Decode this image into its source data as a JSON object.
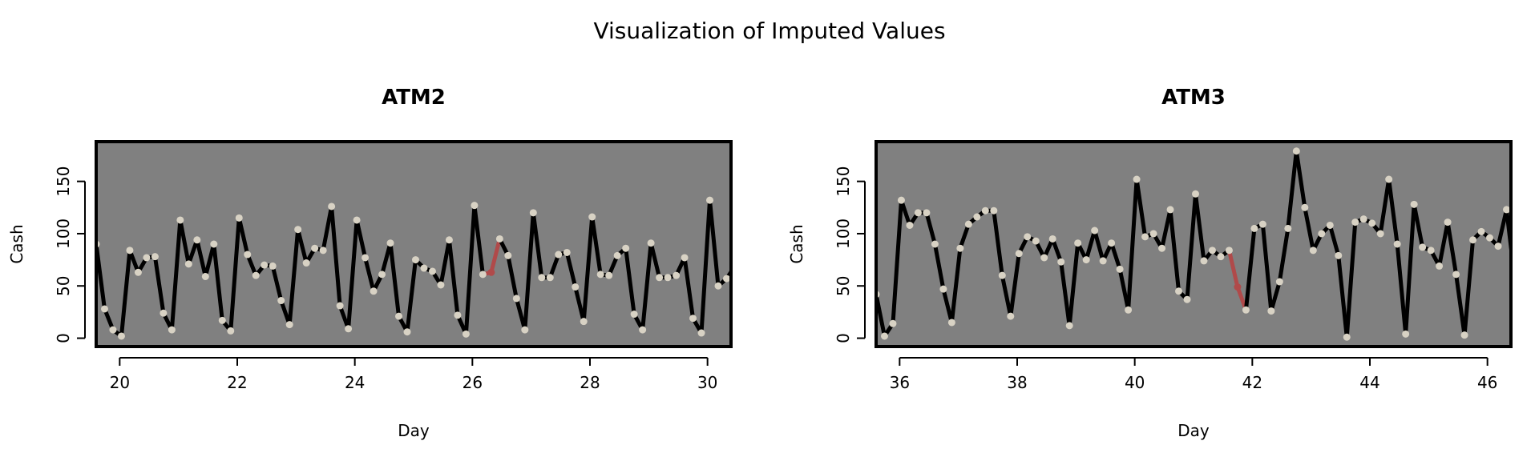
{
  "page": {
    "title": "Visualization of Imputed Values"
  },
  "colors": {
    "panel_bg": "#808080",
    "line": "#000000",
    "imputed_line": "#b04a4a",
    "point": "#d8d2c4"
  },
  "chart_data": [
    {
      "type": "line",
      "title": "ATM2",
      "xlabel": "Day",
      "ylabel": "Cash",
      "xlim": [
        19.6,
        30.4
      ],
      "ylim": [
        -8,
        188
      ],
      "xticks": [
        20,
        22,
        24,
        26,
        28,
        30
      ],
      "yticks": [
        0,
        50,
        100,
        150
      ],
      "x_start": 19.6,
      "x_step": 0.143,
      "values": [
        90,
        28,
        8,
        2,
        84,
        63,
        77,
        78,
        24,
        8,
        113,
        71,
        94,
        59,
        90,
        17,
        7,
        115,
        80,
        60,
        70,
        69,
        36,
        13,
        104,
        72,
        86,
        84,
        126,
        31,
        9,
        113,
        77,
        45,
        61,
        91,
        21,
        6,
        75,
        67,
        64,
        51,
        94,
        22,
        4,
        127,
        61,
        63,
        95,
        79,
        38,
        8,
        120,
        58,
        58,
        80,
        82,
        49,
        16,
        116,
        61,
        60,
        79,
        86,
        23,
        8,
        91,
        58,
        58,
        60,
        77,
        19,
        5,
        132,
        50,
        57,
        69
      ],
      "imputed_indices": [
        47
      ]
    },
    {
      "type": "line",
      "title": "ATM3",
      "xlabel": "Day",
      "ylabel": "Cash",
      "xlim": [
        35.6,
        46.4
      ],
      "ylim": [
        -8,
        188
      ],
      "xticks": [
        36,
        38,
        40,
        42,
        44,
        46
      ],
      "yticks": [
        0,
        50,
        100,
        150
      ],
      "x_start": 35.6,
      "x_step": 0.143,
      "values": [
        42,
        2,
        14,
        132,
        108,
        120,
        120,
        90,
        47,
        15,
        86,
        109,
        116,
        122,
        122,
        60,
        21,
        81,
        97,
        93,
        77,
        95,
        73,
        12,
        91,
        75,
        103,
        74,
        91,
        66,
        27,
        152,
        97,
        100,
        86,
        123,
        45,
        37,
        138,
        74,
        84,
        78,
        84,
        49,
        27,
        105,
        109,
        26,
        54,
        105,
        179,
        125,
        84,
        100,
        108,
        79,
        1,
        111,
        114,
        110,
        100,
        152,
        90,
        4,
        128,
        87,
        84,
        69,
        111,
        61,
        3,
        94,
        102,
        96,
        88,
        123,
        55
      ],
      "imputed_indices": [
        43
      ]
    }
  ]
}
